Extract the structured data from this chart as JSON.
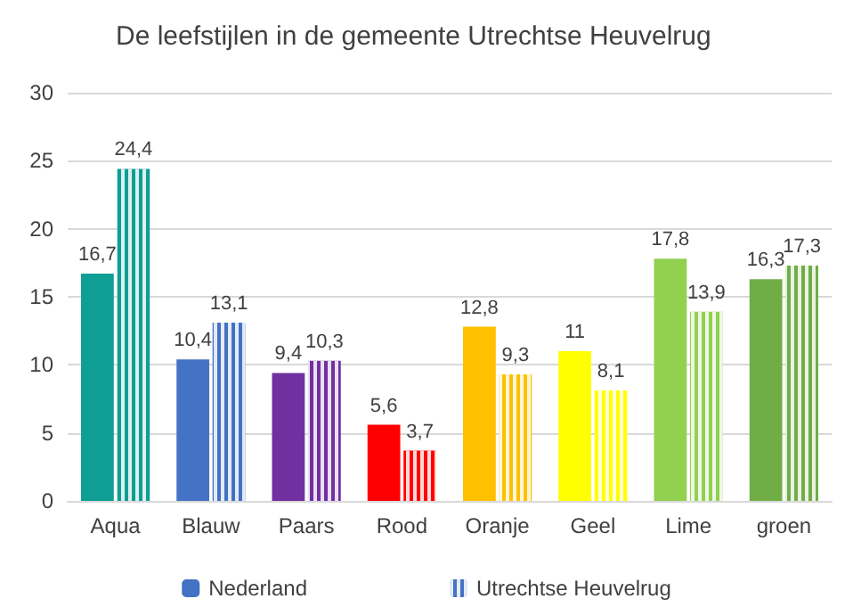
{
  "chart_data": {
    "type": "bar",
    "title": "De leefstijlen in de gemeente Utrechtse Heuvelrug",
    "categories": [
      "Aqua",
      "Blauw",
      "Paars",
      "Rood",
      "Oranje",
      "Geel",
      "Lime",
      "groen"
    ],
    "series": [
      {
        "name": "Nederland",
        "color": "#4472c4",
        "colors": [
          "#0e9e94",
          "#4472c4",
          "#7030a0",
          "#ff0000",
          "#ffc000",
          "#ffff00",
          "#92d050",
          "#70ad47"
        ],
        "values": [
          16.7,
          10.4,
          9.4,
          5.6,
          12.8,
          11,
          17.8,
          16.3
        ],
        "value_labels": [
          "16,7",
          "10,4",
          "9,4",
          "5,6",
          "12,8",
          "11",
          "17,8",
          "16,3"
        ]
      },
      {
        "name": "Utrechtse Heuvelrug",
        "color": "#4472c4",
        "colors": [
          "#0e9e94",
          "#4472c4",
          "#7030a0",
          "#ff0000",
          "#ffc000",
          "#ffff00",
          "#92d050",
          "#70ad47"
        ],
        "values": [
          24.4,
          13.1,
          10.3,
          3.7,
          9.3,
          8.1,
          13.9,
          17.3
        ],
        "value_labels": [
          "24,4",
          "13,1",
          "10,3",
          "3,7",
          "9,3",
          "8,1",
          "13,9",
          "17,3"
        ]
      }
    ],
    "ylim": [
      0,
      30
    ],
    "yticks": [
      0,
      5,
      10,
      15,
      20,
      25,
      30
    ],
    "grid": "y",
    "legend": "bottom"
  }
}
